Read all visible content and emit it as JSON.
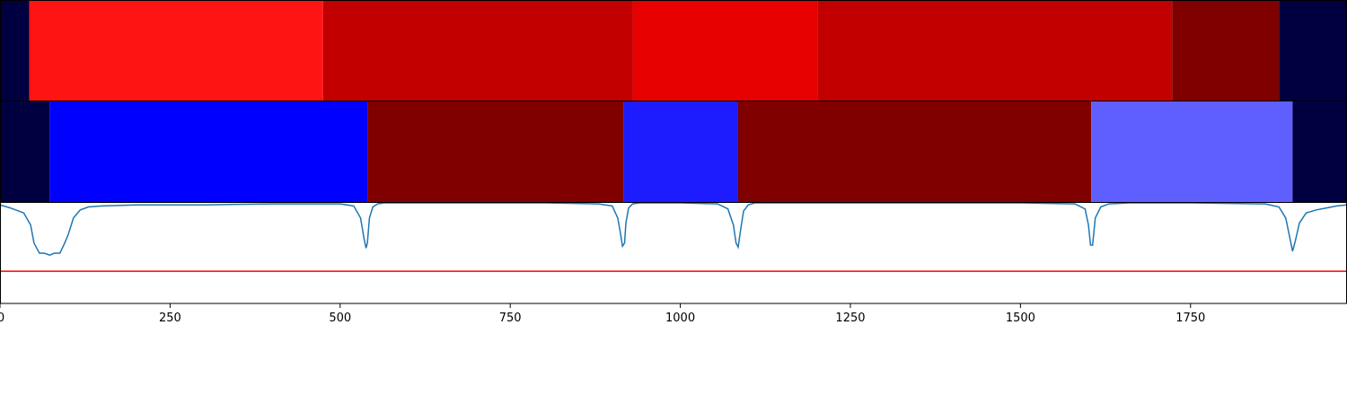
{
  "chart_data": {
    "type": "heatmap",
    "xlim": [
      0,
      1980
    ],
    "xticks": [
      0,
      250,
      500,
      750,
      1000,
      1250,
      1500,
      1750
    ],
    "xtick_labels": [
      "0",
      "250",
      "500",
      "750",
      "1000",
      "1250",
      "1500",
      "1750"
    ],
    "grid": false,
    "legend": "none",
    "colors": {
      "dark_navy": "#000040",
      "bright_red": "#ff1414",
      "red": "#c20000",
      "vivid_red": "#e60000",
      "dark_red": "#800000",
      "blue": "#0000ff",
      "bright_blue": "#1c1cff",
      "light_blue": "#5f5fff",
      "line": "#1f77b4",
      "threshold": "#ff0000"
    },
    "strips": [
      {
        "segments": [
          {
            "start": 0,
            "end": 43,
            "color": "#000040"
          },
          {
            "start": 43,
            "end": 475,
            "color": "#ff1414"
          },
          {
            "start": 475,
            "end": 930,
            "color": "#c20000"
          },
          {
            "start": 930,
            "end": 1202,
            "color": "#e60000"
          },
          {
            "start": 1202,
            "end": 1723,
            "color": "#c20000"
          },
          {
            "start": 1723,
            "end": 1880,
            "color": "#800000"
          },
          {
            "start": 1880,
            "end": 1980,
            "color": "#000040"
          }
        ]
      },
      {
        "segments": [
          {
            "start": 0,
            "end": 73,
            "color": "#000040"
          },
          {
            "start": 73,
            "end": 540,
            "color": "#0000ff"
          },
          {
            "start": 540,
            "end": 917,
            "color": "#800000"
          },
          {
            "start": 917,
            "end": 1085,
            "color": "#1c1cff"
          },
          {
            "start": 1085,
            "end": 1604,
            "color": "#800000"
          },
          {
            "start": 1604,
            "end": 1900,
            "color": "#5f5fff"
          },
          {
            "start": 1900,
            "end": 1980,
            "color": "#000040"
          }
        ]
      }
    ],
    "signal_ylim": [
      0,
      1
    ],
    "threshold": 0.32,
    "signal_x": [
      0,
      15,
      35,
      45,
      50,
      58,
      65,
      73,
      80,
      88,
      95,
      100,
      108,
      118,
      130,
      150,
      200,
      300,
      400,
      500,
      520,
      530,
      535,
      538,
      540,
      543,
      548,
      555,
      565,
      600,
      700,
      800,
      880,
      900,
      908,
      912,
      915,
      918,
      920,
      924,
      930,
      940,
      960,
      1000,
      1055,
      1070,
      1078,
      1082,
      1085,
      1088,
      1093,
      1100,
      1110,
      1150,
      1300,
      1500,
      1580,
      1595,
      1600,
      1603,
      1606,
      1610,
      1618,
      1630,
      1660,
      1750,
      1860,
      1880,
      1890,
      1896,
      1900,
      1904,
      1910,
      1920,
      1935,
      1950,
      1965,
      1980
    ],
    "signal_y": [
      0.98,
      0.95,
      0.9,
      0.78,
      0.6,
      0.5,
      0.5,
      0.48,
      0.5,
      0.5,
      0.6,
      0.68,
      0.85,
      0.93,
      0.96,
      0.97,
      0.98,
      0.98,
      0.99,
      0.99,
      0.97,
      0.85,
      0.65,
      0.55,
      0.6,
      0.85,
      0.96,
      0.99,
      1.0,
      1.0,
      1.0,
      1.0,
      0.99,
      0.97,
      0.85,
      0.7,
      0.57,
      0.6,
      0.8,
      0.95,
      0.99,
      1.0,
      1.0,
      1.0,
      0.99,
      0.94,
      0.78,
      0.6,
      0.56,
      0.7,
      0.92,
      0.98,
      1.0,
      1.0,
      1.0,
      1.0,
      0.99,
      0.94,
      0.78,
      0.58,
      0.58,
      0.85,
      0.96,
      0.99,
      1.0,
      1.0,
      0.99,
      0.96,
      0.85,
      0.65,
      0.52,
      0.62,
      0.8,
      0.9,
      0.93,
      0.95,
      0.97,
      0.98
    ]
  }
}
